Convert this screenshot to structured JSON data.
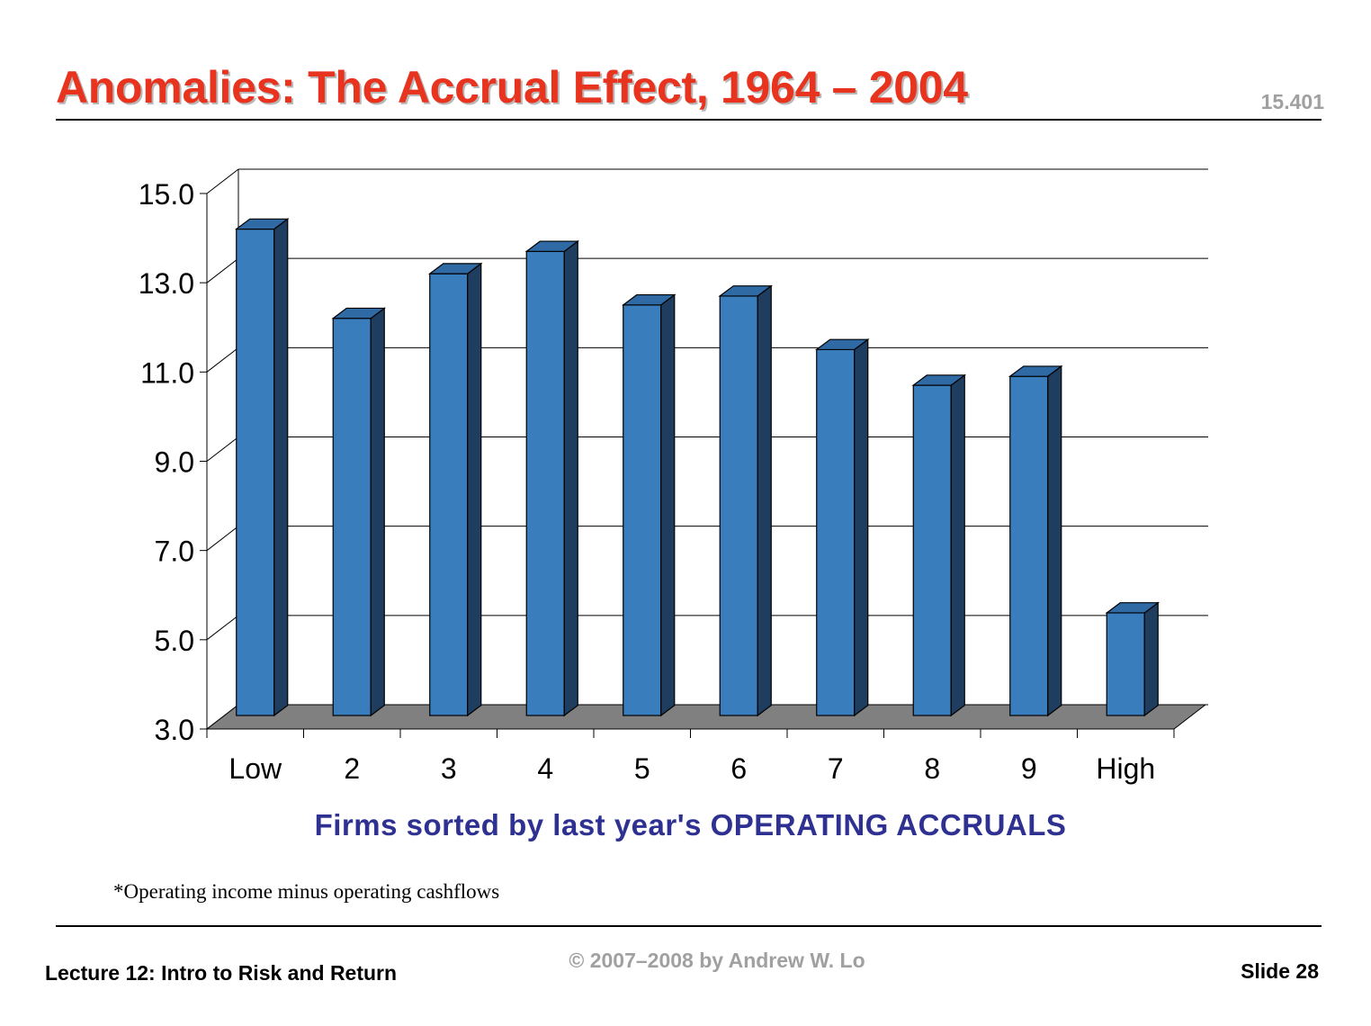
{
  "slide": {
    "title": "Anomalies:  The Accrual Effect, 1964 – 2004",
    "course": "15.401",
    "footnote": "*Operating income minus operating cashflows",
    "lecture": "Lecture 12: Intro to Risk and Return",
    "copyright": "© 2007–2008 by Andrew W. Lo",
    "slide_number": "Slide 28"
  },
  "colors": {
    "title": "#e8331f",
    "bar_front": "#3a7dbd",
    "bar_side": "#1f3d5f",
    "bar_top": "#2f6aa5",
    "floor": "#808080",
    "xlabel": "#2e3192"
  },
  "chart_data": {
    "type": "bar",
    "style": "3d-column",
    "categories": [
      "Low",
      "2",
      "3",
      "4",
      "5",
      "6",
      "7",
      "8",
      "9",
      "High"
    ],
    "values": [
      13.9,
      11.9,
      12.9,
      13.4,
      12.2,
      12.4,
      11.2,
      10.4,
      10.6,
      5.3
    ],
    "ylim": [
      3.0,
      15.0
    ],
    "yticks": [
      "15.0",
      "13.0",
      "11.0",
      "9.0",
      "7.0",
      "5.0",
      "3.0"
    ],
    "xlabel": "Firms sorted by last year's OPERATING ACCRUALS",
    "ylabel": "",
    "grid": true,
    "legend": "none"
  }
}
